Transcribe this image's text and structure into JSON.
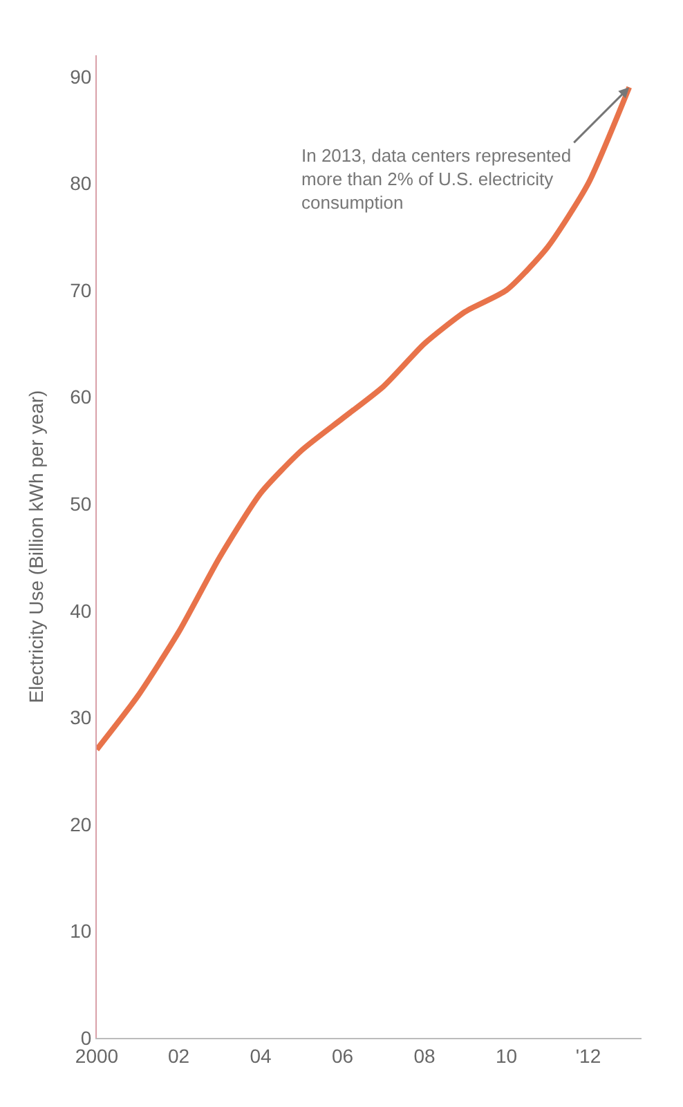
{
  "chart_data": {
    "type": "line",
    "ylabel": "Electricity Use (Billion kWh per year)",
    "x": [
      2000,
      2001,
      2002,
      2003,
      2004,
      2005,
      2006,
      2007,
      2008,
      2009,
      2010,
      2011,
      2012,
      2013
    ],
    "series": [
      {
        "color": "#e8734a",
        "values": [
          27,
          32,
          38,
          45,
          51,
          55,
          58,
          61,
          65,
          68,
          70,
          74,
          80,
          89
        ]
      }
    ],
    "xlim": [
      2000,
      2013.3
    ],
    "xticks": [
      {
        "value": 2000,
        "label": "2000"
      },
      {
        "value": 2002,
        "label": "02"
      },
      {
        "value": 2004,
        "label": "04"
      },
      {
        "value": 2006,
        "label": "06"
      },
      {
        "value": 2008,
        "label": "08"
      },
      {
        "value": 2010,
        "label": "10"
      },
      {
        "value": 2012,
        "label": "'12"
      }
    ],
    "ylim": [
      0,
      92
    ],
    "yticks": [
      0,
      10,
      20,
      30,
      40,
      50,
      60,
      70,
      80,
      90
    ],
    "annotations": [
      {
        "text": "In 2013, data centers represented\nmore than 2% of U.S. electricity\nconsumption",
        "x": 2013,
        "y": 89
      }
    ],
    "marker": "none",
    "line_style": "solid"
  }
}
